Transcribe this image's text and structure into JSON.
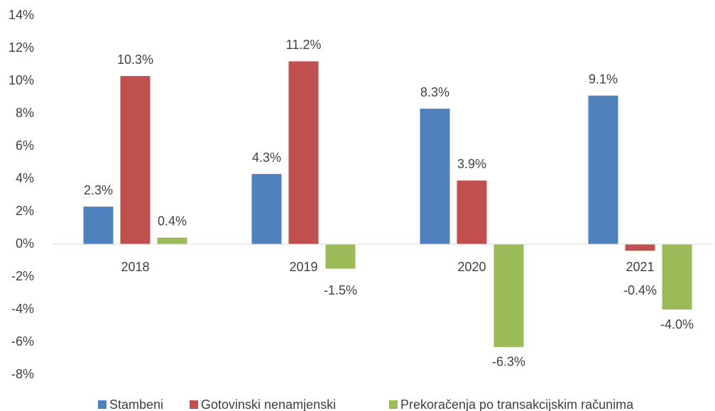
{
  "chart_data": {
    "type": "bar",
    "categories": [
      "2018",
      "2019",
      "2020",
      "2021"
    ],
    "series": [
      {
        "name": "Stambeni",
        "color": "#4f81bd",
        "values": [
          2.3,
          4.3,
          8.3,
          9.1
        ],
        "value_labels": [
          "2.3%",
          "4.3%",
          "8.3%",
          "9.1%"
        ]
      },
      {
        "name": "Gotovinski nenamjenski",
        "color": "#c0504d",
        "values": [
          10.3,
          11.2,
          3.9,
          -0.4
        ],
        "value_labels": [
          "10.3%",
          "11.2%",
          "3.9%",
          "-0.4%"
        ]
      },
      {
        "name": "Prekoračenja po transakcijskim računima",
        "color": "#9bbb59",
        "values": [
          0.4,
          -1.5,
          -6.3,
          -4.0
        ],
        "value_labels": [
          "0.4%",
          "-1.5%",
          "-6.3%",
          "-4.0%"
        ]
      }
    ],
    "ylim": [
      -8,
      14
    ],
    "yticks": [
      {
        "value": -8,
        "label": "-8%"
      },
      {
        "value": -6,
        "label": "-6%"
      },
      {
        "value": -4,
        "label": "-4%"
      },
      {
        "value": -2,
        "label": "-2%"
      },
      {
        "value": 0,
        "label": "0%"
      },
      {
        "value": 2,
        "label": "2%"
      },
      {
        "value": 4,
        "label": "4%"
      },
      {
        "value": 6,
        "label": "6%"
      },
      {
        "value": 8,
        "label": "8%"
      },
      {
        "value": 10,
        "label": "10%"
      },
      {
        "value": 12,
        "label": "12%"
      },
      {
        "value": 14,
        "label": "14%"
      }
    ],
    "grid": false,
    "legend": "bottom"
  }
}
